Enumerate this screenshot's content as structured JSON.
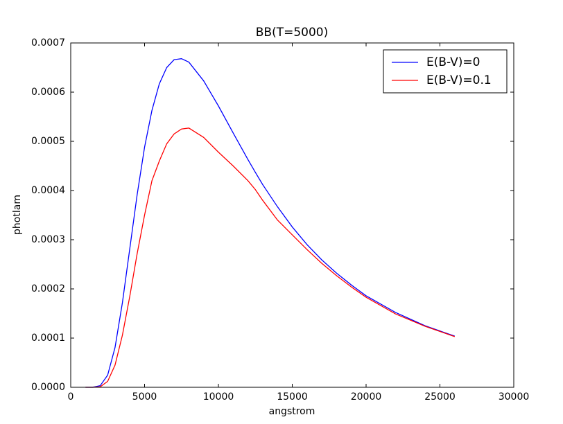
{
  "chart_data": {
    "type": "line",
    "title": "BB(T=5000)",
    "x_label": "angstrom",
    "y_label": "photlam",
    "x": [
      1000,
      1500,
      2000,
      2500,
      3000,
      3500,
      4000,
      4500,
      5000,
      5500,
      6000,
      6500,
      7000,
      7500,
      8000,
      9000,
      10000,
      11000,
      12000,
      12500,
      13000,
      14000,
      15000,
      16000,
      17000,
      18000,
      19000,
      20000,
      22000,
      24000,
      26000
    ],
    "series": [
      {
        "name": "E(B-V)=0",
        "color": "#0000ff",
        "values": [
          0,
          1e-07,
          3.4e-06,
          2.46e-05,
          8.09e-05,
          0.000172,
          0.000282,
          0.000392,
          0.000488,
          0.000563,
          0.000617,
          0.00065,
          0.000666,
          0.000668,
          0.000661,
          0.000623,
          0.000572,
          0.000517,
          0.000463,
          0.000437,
          0.000412,
          0.000367,
          0.000326,
          0.00029,
          0.000259,
          0.000232,
          0.000208,
          0.000186,
          0.000152,
          0.000125,
          0.000104
        ]
      },
      {
        "name": "E(B-V)=0.1",
        "color": "#ff0000",
        "values": [
          0,
          0,
          1e-06,
          1.2e-05,
          4.5e-05,
          0.000106,
          0.000185,
          0.000272,
          0.00035,
          0.00042,
          0.00046,
          0.000495,
          0.000515,
          0.000525,
          0.000527,
          0.000508,
          0.000478,
          0.00045,
          0.00042,
          0.000402,
          0.00038,
          0.00034,
          0.00031,
          0.00028,
          0.000252,
          0.000227,
          0.000204,
          0.000183,
          0.000149,
          0.000124,
          0.000103
        ]
      }
    ],
    "xlim": [
      0,
      30000
    ],
    "xticks": [
      0,
      5000,
      10000,
      15000,
      20000,
      25000,
      30000
    ],
    "ylim": [
      0,
      0.0007
    ],
    "yticks": [
      {
        "value": 0,
        "label": "0.0000"
      },
      {
        "value": 0.0001,
        "label": "0.0001"
      },
      {
        "value": 0.0002,
        "label": "0.0002"
      },
      {
        "value": 0.0003,
        "label": "0.0003"
      },
      {
        "value": 0.0004,
        "label": "0.0004"
      },
      {
        "value": 0.0005,
        "label": "0.0005"
      },
      {
        "value": 0.0006,
        "label": "0.0006"
      },
      {
        "value": 0.0007,
        "label": "0.0007"
      }
    ],
    "legend": "upper right",
    "grid": false
  }
}
